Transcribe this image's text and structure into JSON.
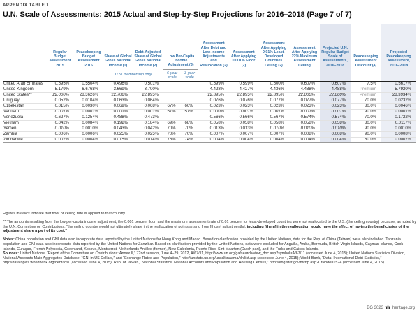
{
  "page": {
    "kicker": "APPENDIX TABLE 1",
    "title": "U.N. Scale of Assessments: 2015 Actual and Step-by-Step Projections for 2016–2018 (Page 7 of 7)"
  },
  "table": {
    "columns": [
      "Regular Budget Assessment 2015",
      "Peacekeeping Budget Assessment 2015",
      "Share of Global Gross National Income (1)",
      "Debt-Adjusted Share of Global Gross National Income (2)",
      "Low Per-Capita Income Adjustment (3)",
      "Assessment After Debt and Low-Income Adjustments and Reallocation (2)",
      "Assessment After Applying 0.001% Floor (2)",
      "Assessment After Applying 0.01% Least-Developed Countries Ceiling (2)",
      "Assessment After Applying 22% Maximum Assessment Ceiling",
      "Projected U.N. Regular Budget Scale of Assessments, 2016–2018",
      "Peacekeeping Assessment Discount (4)",
      "Projected Peacekeeping Assessment, 2016–2018"
    ],
    "membership_note": "U.N. membership only",
    "scale_labels": [
      "6-year scale",
      "3-year scale"
    ],
    "rows": [
      {
        "country": "United Arab Emirates",
        "values": [
          "0.595%",
          "0.5504%",
          "0.496%",
          "0.501%",
          "",
          "",
          "0.599%",
          "0.599%",
          "0.600%",
          "0.607%",
          "0.607%",
          "7.5%",
          "0.5617%"
        ],
        "italic": [],
        "muted": []
      },
      {
        "country": "United Kingdom",
        "values": [
          "5.179%",
          "6.6768%",
          "3.669%",
          "3.700%",
          "",
          "",
          "4.428%",
          "4.427%",
          "4.436%",
          "4.488%",
          "4.488%",
          "Premium",
          "5.7920%"
        ],
        "italic": [],
        "muted": [
          11
        ]
      },
      {
        "country": "United States**",
        "values": [
          "22.000%",
          "28.3626%",
          "22.706%",
          "22.895%",
          "",
          "",
          "22.895%",
          "22.895%",
          "22.895%",
          "22.000%",
          "22.000%",
          "Premium",
          "28.3934%"
        ],
        "italic": [
          0,
          9,
          10
        ],
        "muted": [
          11
        ]
      },
      {
        "country": "Uruguay",
        "values": [
          "0.052%",
          "0.0104%",
          "0.063%",
          "0.064%",
          "",
          "",
          "0.076%",
          "0.076%",
          "0.077%",
          "0.077%",
          "0.077%",
          "70.0%",
          "0.0232%"
        ],
        "italic": [],
        "muted": []
      },
      {
        "country": "Uzbekistan",
        "values": [
          "0.015%",
          "0.0030%",
          "0.069%",
          "0.068%",
          "67%",
          "66%",
          "0.023%",
          "0.023%",
          "0.023%",
          "0.023%",
          "0.023%",
          "80.0%",
          "0.0046%"
        ],
        "italic": [],
        "muted": []
      },
      {
        "country": "Vanuatu",
        "values": [
          "0.001%",
          "0.0001%",
          "0.001%",
          "0.001%",
          "57%",
          "57%",
          "0.000%",
          "0.001%",
          "0.001%",
          "0.001%",
          "0.001%",
          "90.0%",
          "0.0001%"
        ],
        "italic": [
          0,
          7,
          8,
          9,
          10
        ],
        "muted": []
      },
      {
        "country": "Venezuela",
        "values": [
          "0.627%",
          "0.1254%",
          "0.488%",
          "0.473%",
          "",
          "",
          "0.566%",
          "0.566%",
          "0.567%",
          "0.574%",
          "0.574%",
          "70.0%",
          "0.1722%"
        ],
        "italic": [],
        "muted": []
      },
      {
        "country": "Vietnam",
        "values": [
          "0.042%",
          "0.0084%",
          "0.192%",
          "0.184%",
          "69%",
          "68%",
          "0.058%",
          "0.058%",
          "0.058%",
          "0.058%",
          "0.058%",
          "80.0%",
          "0.0117%"
        ],
        "italic": [],
        "muted": []
      },
      {
        "country": "Yemen",
        "values": [
          "0.010%",
          "0.0010%",
          "0.043%",
          "0.042%",
          "70%",
          "70%",
          "0.013%",
          "0.013%",
          "0.010%",
          "0.010%",
          "0.010%",
          "90.0%",
          "0.0010%"
        ],
        "italic": [
          0,
          8,
          9,
          10
        ],
        "muted": []
      },
      {
        "country": "Zambia",
        "values": [
          "0.006%",
          "0.0006%",
          "0.025%",
          "0.025%",
          "70%",
          "70%",
          "0.007%",
          "0.007%",
          "0.007%",
          "0.008%",
          "0.008%",
          "90.0%",
          "0.0008%"
        ],
        "italic": [],
        "muted": []
      },
      {
        "country": "Zimbabwe",
        "values": [
          "0.002%",
          "0.0004%",
          "0.015%",
          "0.014%",
          "75%",
          "74%",
          "0.004%",
          "0.004%",
          "0.004%",
          "0.004%",
          "0.004%",
          "80.0%",
          "0.0007%"
        ],
        "italic": [],
        "muted": []
      }
    ]
  },
  "footnotes": {
    "italics_pre": "Figures in ",
    "italics_word": "italics",
    "italics_post": " indicate that floor or ceiling rate is applied to that country.",
    "us_note": "** The amounts resulting from the low per-capita income adjustment, the 0.001 percent floor, and the maximum assessment rate of 0.01 percent for least-developed countries were not reallocated to the U.S. (the ceiling country) because, as noted by the U.N. Committee on Contributions, “the ceiling country would not ultimately share in the reallocation of points arising from [those] adjustment[s],",
    "us_note_bold": "including [them] in the reallocation would have the effect of having the beneficiaries of the adjustment share a part of its cost.”",
    "notes_label": "Notes:",
    "notes_text": "China population and GNI data also incorporate data reported by the United Nations for Hong Kong and Macao. Based on clarification provided by the United Nations, data for the Rep. of China (Taiwan) were also included. Tanzania population and GNI data also incorporate data reported by the United Nations for Zanzibar. Based on clarification provided by the United Nations, data were excluded for Anguilla, Aruba, Bermuda, British Virgin Islands, Cayman Islands, Cook Islands, Curaçao, French Polynesia, Greenland, Kosovo, Montserrat, Netherlands Antilles (former), New Caledonia, Puerto Rico, Sint Maarten (Dutch part), and the Turks and Caicos Islands.",
    "sources_label": "Sources:",
    "sources_text": "United Nations, “Report of the Committee on Contributions: Annex II,” 72nd session, June 4–29, 2012, A/67/11, http://www.un.org/ga/search/view_doc.asp?symbol=A/67/11 (accessed June 4, 2015); United Nations Statistics Division, National Accounts Main Aggregates Database, “GNI in US Dollars,” and “Exchange Rates and Population,” http://unstats.un.org/unsd/snaama/dnllist.asp (accessed June 4, 2015); World Bank, “Data: International Debt Statistics,” http://datatopics.worldbank.org/debt/ids/ (accessed June 4, 2015); Rep. of Taiwan, “National Statistics: National Accounts and Population and Housing Census,” http://eng.stat.gov.tw/np.asp?CtNode=1524 (accessed June 4, 2015)."
  },
  "footer": {
    "report_id": "BG 3023",
    "site": "heritage.org"
  }
}
